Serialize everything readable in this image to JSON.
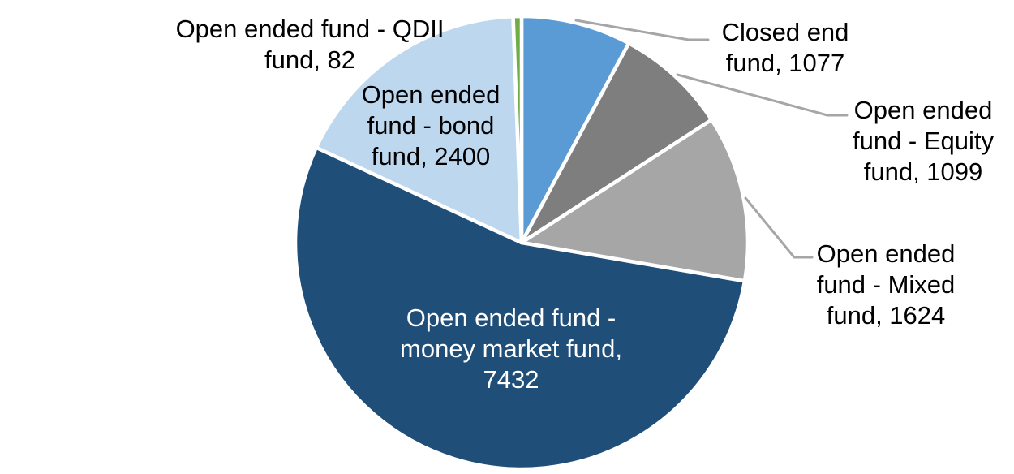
{
  "chart_data": {
    "type": "pie",
    "title": "",
    "legend": "none",
    "background": "#FFFFFF",
    "slice_border_color": "#FFFFFF",
    "leader_line_color": "#A6A6A6",
    "label_format": "name, value",
    "start_angle_deg": 0,
    "direction": "clockwise",
    "slices": [
      {
        "name": "Closed end fund",
        "value": 1077,
        "color": "#5B9BD5",
        "label_text": "Closed end fund, 1077",
        "label_lines": [
          "Closed end",
          "fund, 1077"
        ],
        "label_text_color": "#000000",
        "label_position": "outside",
        "leader_line": true
      },
      {
        "name": "Open ended fund - Equity fund",
        "value": 1099,
        "color": "#7E7E7E",
        "label_text": "Open ended fund - Equity fund, 1099",
        "label_lines": [
          "Open ended",
          "fund - Equity",
          "fund, 1099"
        ],
        "label_text_color": "#000000",
        "label_position": "outside",
        "leader_line": true
      },
      {
        "name": "Open ended fund - Mixed fund",
        "value": 1624,
        "color": "#A6A6A6",
        "label_text": "Open ended fund - Mixed fund, 1624",
        "label_lines": [
          "Open ended",
          "fund - Mixed",
          "fund, 1624"
        ],
        "label_text_color": "#000000",
        "label_position": "outside",
        "leader_line": true
      },
      {
        "name": "Open ended fund - money market fund",
        "value": 7432,
        "color": "#1F4E79",
        "label_text": "Open ended fund - money market fund, 7432",
        "label_lines": [
          "Open ended fund -",
          "money market fund,",
          "7432"
        ],
        "label_text_color": "#FFFFFF",
        "label_position": "inside",
        "leader_line": false
      },
      {
        "name": "Open ended fund - bond fund",
        "value": 2400,
        "color": "#BDD7EE",
        "label_text": "Open ended fund - bond fund, 2400",
        "label_lines": [
          "Open ended",
          "fund - bond",
          "fund, 2400"
        ],
        "label_text_color": "#000000",
        "label_position": "inside",
        "leader_line": false
      },
      {
        "name": "Open ended fund - QDII fund",
        "value": 82,
        "color": "#70AD47",
        "label_text": "Open ended fund - QDII fund, 82",
        "label_lines": [
          "Open ended fund - QDII",
          "fund, 82"
        ],
        "label_text_color": "#000000",
        "label_position": "outside",
        "leader_line": false
      }
    ]
  }
}
